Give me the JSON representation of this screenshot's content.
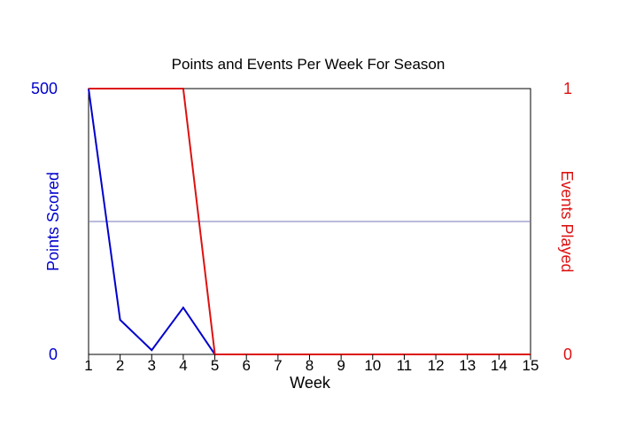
{
  "chart_data": {
    "type": "line",
    "title": "Points and Events Per Week For Season",
    "xlabel": "Week",
    "x": [
      1,
      2,
      3,
      4,
      5,
      6,
      7,
      8,
      9,
      10,
      11,
      12,
      13,
      14,
      15
    ],
    "xlim": [
      1,
      15
    ],
    "y_left": {
      "label": "Points Scored",
      "ylim": [
        0,
        500
      ],
      "tick_labels": [
        "0",
        "500"
      ],
      "color": "#0000cc"
    },
    "y_right": {
      "label": "Events Played",
      "ylim": [
        0,
        1
      ],
      "tick_labels": [
        "0",
        "1"
      ],
      "color": "#dd1111"
    },
    "reference_line": {
      "axis": "left",
      "value": 250,
      "color": "#7777bb"
    },
    "series": [
      {
        "axis": "left",
        "color": "#0000cc",
        "values": [
          500,
          65,
          8,
          88,
          0,
          0,
          0,
          0,
          0,
          0,
          0,
          0,
          0,
          0,
          0
        ]
      },
      {
        "axis": "right",
        "color": "#dd1111",
        "values": [
          1,
          1,
          1,
          1,
          0,
          0,
          0,
          0,
          0,
          0,
          0,
          0,
          0,
          0,
          0
        ]
      }
    ],
    "grid": false
  }
}
